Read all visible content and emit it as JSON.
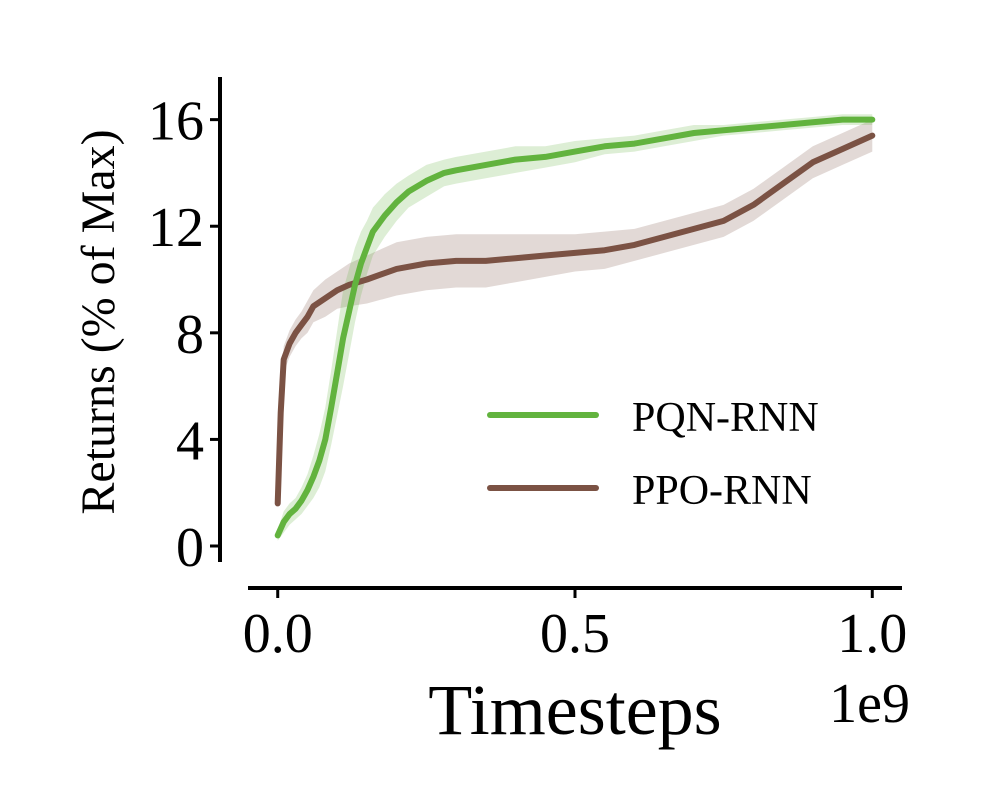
{
  "chart_data": {
    "type": "line",
    "xlabel": "Timesteps",
    "x_multiplier": "1e9",
    "ylabel": "Returns (% of Max)",
    "xlim": [
      -0.05,
      1.05
    ],
    "ylim": [
      -0.6,
      17.6
    ],
    "xticks": [
      0.0,
      0.5,
      1.0
    ],
    "xtick_labels": [
      "0.0",
      "0.5",
      "1.0"
    ],
    "yticks": [
      0,
      4,
      8,
      12,
      16
    ],
    "ytick_labels": [
      "0",
      "4",
      "8",
      "12",
      "16"
    ],
    "grid": false,
    "legend_position": "lower-right",
    "series": [
      {
        "name": "PQN-RNN",
        "color": "#62b33e",
        "x": [
          0.0,
          0.01,
          0.02,
          0.03,
          0.04,
          0.05,
          0.06,
          0.07,
          0.08,
          0.09,
          0.1,
          0.11,
          0.12,
          0.13,
          0.14,
          0.15,
          0.16,
          0.18,
          0.2,
          0.22,
          0.25,
          0.28,
          0.3,
          0.35,
          0.4,
          0.45,
          0.5,
          0.55,
          0.6,
          0.65,
          0.7,
          0.75,
          0.8,
          0.85,
          0.9,
          0.95,
          1.0
        ],
        "y": [
          0.4,
          0.9,
          1.2,
          1.4,
          1.7,
          2.1,
          2.6,
          3.2,
          4.0,
          5.2,
          6.5,
          7.8,
          8.8,
          9.8,
          10.6,
          11.2,
          11.8,
          12.4,
          12.9,
          13.3,
          13.7,
          14.0,
          14.1,
          14.3,
          14.5,
          14.6,
          14.8,
          15.0,
          15.1,
          15.3,
          15.5,
          15.6,
          15.7,
          15.8,
          15.9,
          16.0,
          16.0
        ],
        "band": [
          0.2,
          0.4,
          0.4,
          0.4,
          0.5,
          0.6,
          0.8,
          1.0,
          1.2,
          1.4,
          1.6,
          1.8,
          1.6,
          1.4,
          1.2,
          1.0,
          0.9,
          0.8,
          0.7,
          0.6,
          0.6,
          0.5,
          0.5,
          0.5,
          0.5,
          0.4,
          0.4,
          0.3,
          0.3,
          0.3,
          0.3,
          0.2,
          0.2,
          0.2,
          0.2,
          0.2,
          0.2
        ]
      },
      {
        "name": "PPO-RNN",
        "color": "#7b5244",
        "x": [
          0.0,
          0.005,
          0.01,
          0.02,
          0.03,
          0.04,
          0.05,
          0.06,
          0.08,
          0.1,
          0.12,
          0.15,
          0.2,
          0.25,
          0.3,
          0.35,
          0.4,
          0.45,
          0.5,
          0.55,
          0.6,
          0.65,
          0.7,
          0.75,
          0.8,
          0.85,
          0.9,
          0.95,
          1.0
        ],
        "y": [
          1.6,
          5.0,
          7.0,
          7.6,
          8.0,
          8.3,
          8.6,
          9.0,
          9.3,
          9.6,
          9.8,
          10.0,
          10.4,
          10.6,
          10.7,
          10.7,
          10.8,
          10.9,
          11.0,
          11.1,
          11.3,
          11.6,
          11.9,
          12.2,
          12.8,
          13.6,
          14.4,
          14.9,
          15.4
        ],
        "band": [
          0.2,
          0.5,
          0.5,
          0.5,
          0.5,
          0.5,
          0.6,
          0.6,
          0.7,
          0.7,
          0.8,
          0.9,
          1.0,
          1.0,
          1.0,
          1.0,
          0.9,
          0.8,
          0.7,
          0.7,
          0.6,
          0.6,
          0.6,
          0.6,
          0.6,
          0.6,
          0.6,
          0.6,
          0.6
        ]
      }
    ]
  }
}
